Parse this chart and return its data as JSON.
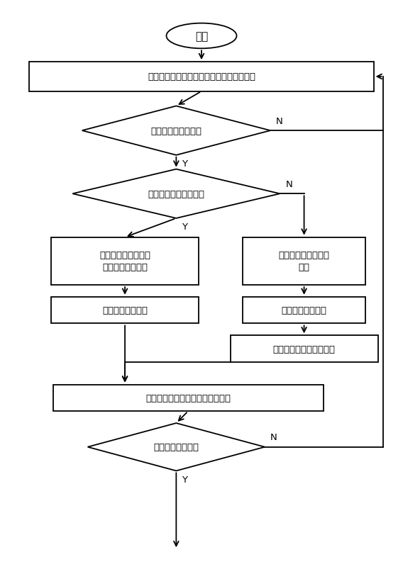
{
  "bg_color": "#ffffff",
  "nodes": {
    "start": {
      "label": "开始"
    },
    "monitor1": {
      "label": "监测系统三相电压、零序电压和断路器状态"
    },
    "fault_q": {
      "label": "有单相接地故障吗？"
    },
    "cb_q": {
      "label": "故障前断路器闭合吗？"
    },
    "left_action": {
      "label": "由测控装置将断路器\n断开，再将其闭合"
    },
    "right_action": {
      "label": "由测控装置将断路器\n闭合"
    },
    "left_select": {
      "label": "根据判据进行选线"
    },
    "right_select": {
      "label": "根据判据进行选线"
    },
    "open_cb": {
      "label": "选线结束，将断路器断开"
    },
    "monitor2": {
      "label": "继续监测系统三相电压、零序电压"
    },
    "resolve_q": {
      "label": "故障是否已解除？"
    }
  }
}
